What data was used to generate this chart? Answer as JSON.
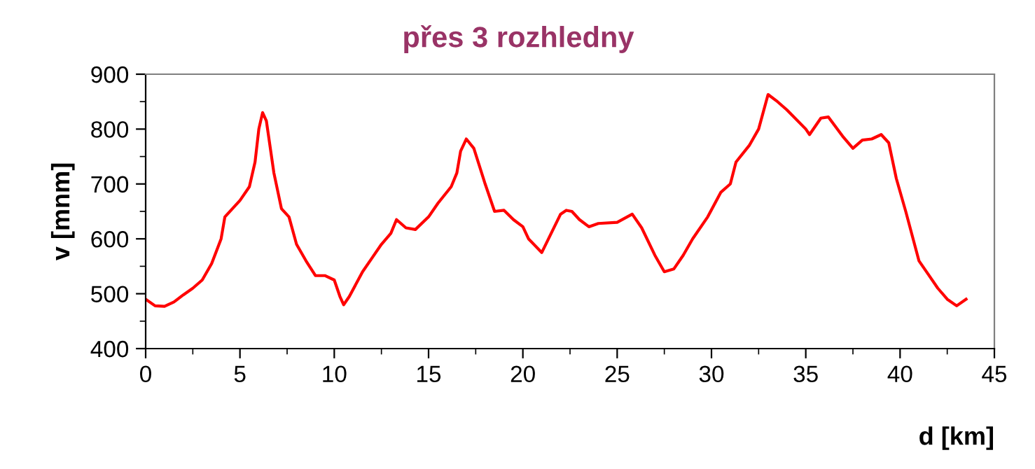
{
  "chart_data": {
    "type": "line",
    "title": "přes 3 rozhledny",
    "xlabel": "d [km]",
    "ylabel": "v [mnm]",
    "xlim": [
      0,
      45
    ],
    "xticks": [
      0,
      5,
      10,
      15,
      20,
      25,
      30,
      35,
      40,
      45
    ],
    "ylim": [
      400,
      900
    ],
    "yticks": [
      400,
      500,
      600,
      700,
      800,
      900
    ],
    "marker": "none",
    "line_style": "solid",
    "series": [
      {
        "color": "#ff0000",
        "x": [
          0,
          0.5,
          1,
          1.5,
          2,
          2.5,
          3,
          3.5,
          4,
          4.2,
          5,
          5.5,
          5.8,
          6.0,
          6.2,
          6.4,
          6.8,
          7.2,
          7.6,
          8,
          8.5,
          9,
          9.5,
          10,
          10.3,
          10.5,
          10.8,
          11.5,
          12,
          12.5,
          13,
          13.3,
          13.8,
          14.3,
          15,
          15.5,
          16.2,
          16.5,
          16.7,
          17,
          17.4,
          18.0,
          18.5,
          19,
          19.5,
          20,
          20.3,
          21,
          21.5,
          22,
          22.3,
          22.6,
          23,
          23.5,
          24,
          25,
          25.8,
          26.3,
          27,
          27.5,
          28,
          28.5,
          29,
          29.8,
          30.5,
          31,
          31.3,
          32,
          32.5,
          33,
          33.5,
          34,
          35,
          35.2,
          35.8,
          36.2,
          37,
          37.5,
          38,
          38.5,
          39,
          39.4,
          39.8,
          40.3,
          41,
          41.5,
          42,
          42.5,
          43,
          43.5
        ],
        "values": [
          490,
          478,
          477,
          485,
          498,
          510,
          525,
          555,
          600,
          640,
          670,
          695,
          740,
          800,
          830,
          815,
          720,
          655,
          640,
          590,
          560,
          533,
          533,
          525,
          495,
          480,
          495,
          540,
          565,
          590,
          610,
          635,
          620,
          617,
          640,
          665,
          695,
          720,
          760,
          782,
          765,
          700,
          650,
          652,
          635,
          622,
          600,
          575,
          610,
          645,
          652,
          650,
          635,
          622,
          628,
          630,
          645,
          620,
          570,
          540,
          545,
          570,
          600,
          640,
          685,
          700,
          740,
          770,
          800,
          863,
          850,
          835,
          800,
          790,
          820,
          822,
          785,
          765,
          780,
          782,
          790,
          775,
          710,
          650,
          560,
          535,
          510,
          490,
          478,
          490
        ]
      }
    ]
  }
}
